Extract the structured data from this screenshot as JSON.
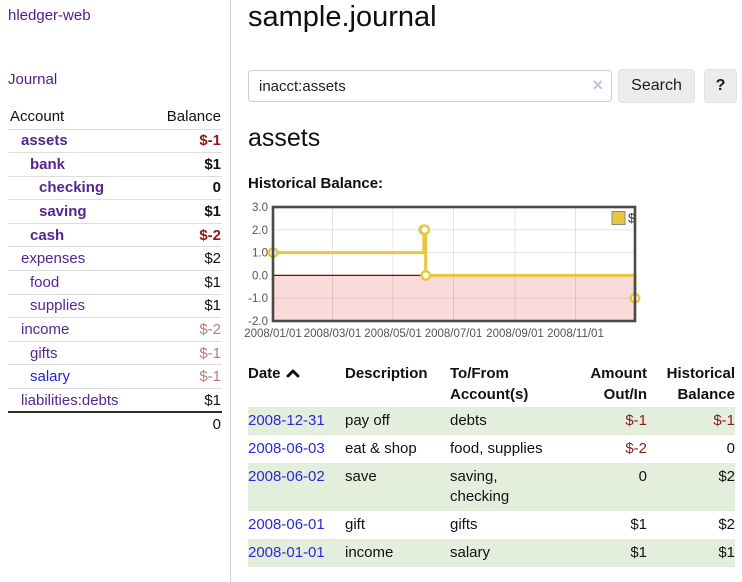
{
  "colors": {
    "link_purple": "#54278f",
    "link_blue": "#2323cc",
    "negative_strong": "#8b1a1a",
    "negative_soft": "#bf7b7b",
    "row_green": "#e3eedd",
    "chart_gold": "#e9c63e",
    "chart_zero_line": "#8b0000",
    "chart_negative_region": "#fbdada",
    "chart_border": "#4a4a4a",
    "chart_axis_text": "#545454"
  },
  "sidebar": {
    "brand": "hledger-web",
    "journal_link": "Journal",
    "account_col": "Account",
    "balance_col": "Balance",
    "accounts": [
      {
        "name": "assets",
        "indent": 1,
        "balance": "$-1",
        "bold": true,
        "balance_tone": "neg-strong",
        "link_tone": "purple"
      },
      {
        "name": "bank",
        "indent": 2,
        "balance": "$1",
        "bold": true,
        "balance_tone": "normal",
        "link_tone": "purple"
      },
      {
        "name": "checking",
        "indent": 3,
        "balance": "0",
        "bold": true,
        "balance_tone": "normal",
        "link_tone": "purple"
      },
      {
        "name": "saving",
        "indent": 3,
        "balance": "$1",
        "bold": true,
        "balance_tone": "normal",
        "link_tone": "purple"
      },
      {
        "name": "cash",
        "indent": 2,
        "balance": "$-2",
        "bold": true,
        "balance_tone": "neg-strong",
        "link_tone": "purple"
      },
      {
        "name": "expenses",
        "indent": 1,
        "balance": "$2",
        "bold": false,
        "balance_tone": "normal",
        "link_tone": "purple"
      },
      {
        "name": "food",
        "indent": 2,
        "balance": "$1",
        "bold": false,
        "balance_tone": "normal",
        "link_tone": "purple"
      },
      {
        "name": "supplies",
        "indent": 2,
        "balance": "$1",
        "bold": false,
        "balance_tone": "normal",
        "link_tone": "purple"
      },
      {
        "name": "income",
        "indent": 1,
        "balance": "$-2",
        "bold": false,
        "balance_tone": "neg-soft",
        "link_tone": "purple"
      },
      {
        "name": "gifts",
        "indent": 2,
        "balance": "$-1",
        "bold": false,
        "balance_tone": "neg-soft",
        "link_tone": "purple"
      },
      {
        "name": "salary",
        "indent": 2,
        "balance": "$-1",
        "bold": false,
        "balance_tone": "neg-soft",
        "link_tone": "blue"
      },
      {
        "name": "liabilities:debts",
        "indent": 1,
        "balance": "$1",
        "bold": false,
        "balance_tone": "normal",
        "link_tone": "purple"
      }
    ],
    "total": "0"
  },
  "main": {
    "title": "sample.journal",
    "search": {
      "value": "inacct:assets",
      "clear_icon": "×",
      "search_button": "Search",
      "help_button": "?"
    },
    "account_heading": "assets",
    "chart_label": "Historical Balance:"
  },
  "chart_data": {
    "type": "line",
    "step": true,
    "title": "Historical Balance",
    "series": [
      {
        "name": "$",
        "color": "#e9c63e",
        "points": [
          {
            "x": "2008-01-01",
            "y": 1
          },
          {
            "x": "2008-06-01",
            "y": 2
          },
          {
            "x": "2008-06-02",
            "y": 2
          },
          {
            "x": "2008-06-03",
            "y": 0
          },
          {
            "x": "2008-12-31",
            "y": -1
          }
        ]
      }
    ],
    "xlim": [
      "2008-01-01",
      "2008-12-31"
    ],
    "ylim": [
      -2,
      3
    ],
    "yticks": [
      -2,
      -1,
      0,
      1,
      2,
      3
    ],
    "ytick_labels": [
      "-2.0",
      "-1.0",
      "0.0",
      "1.0",
      "2.0",
      "3.0"
    ],
    "xticks": [
      "2008-01-01",
      "2008-03-01",
      "2008-05-01",
      "2008-07-01",
      "2008-09-01",
      "2008-11-01"
    ],
    "xtick_labels": [
      "2008/01/01",
      "2008/03/01",
      "2008/05/01",
      "2008/07/01",
      "2008/09/01",
      "2008/11/01"
    ],
    "grid": true,
    "legend": {
      "position": "top-right",
      "label": "$"
    },
    "zero_line": true
  },
  "register": {
    "headers": {
      "date": "Date",
      "description": "Description",
      "accounts": "To/From Account(s)",
      "amount": "Amount Out/In",
      "balance": "Historical Balance"
    },
    "rows": [
      {
        "date": "2008-12-31",
        "description": "pay off",
        "accounts": "debts",
        "amount": "$-1",
        "amount_neg": true,
        "balance": "$-1",
        "balance_neg": true,
        "green": true
      },
      {
        "date": "2008-06-03",
        "description": "eat & shop",
        "accounts": "food, supplies",
        "amount": "$-2",
        "amount_neg": true,
        "balance": "0",
        "balance_neg": false,
        "green": false
      },
      {
        "date": "2008-06-02",
        "description": "save",
        "accounts": "saving, checking",
        "amount": "0",
        "amount_neg": false,
        "balance": "$2",
        "balance_neg": false,
        "green": true
      },
      {
        "date": "2008-06-01",
        "description": "gift",
        "accounts": "gifts",
        "amount": "$1",
        "amount_neg": false,
        "balance": "$2",
        "balance_neg": false,
        "green": false
      },
      {
        "date": "2008-01-01",
        "description": "income",
        "accounts": "salary",
        "amount": "$1",
        "amount_neg": false,
        "balance": "$1",
        "balance_neg": false,
        "green": true
      }
    ]
  }
}
